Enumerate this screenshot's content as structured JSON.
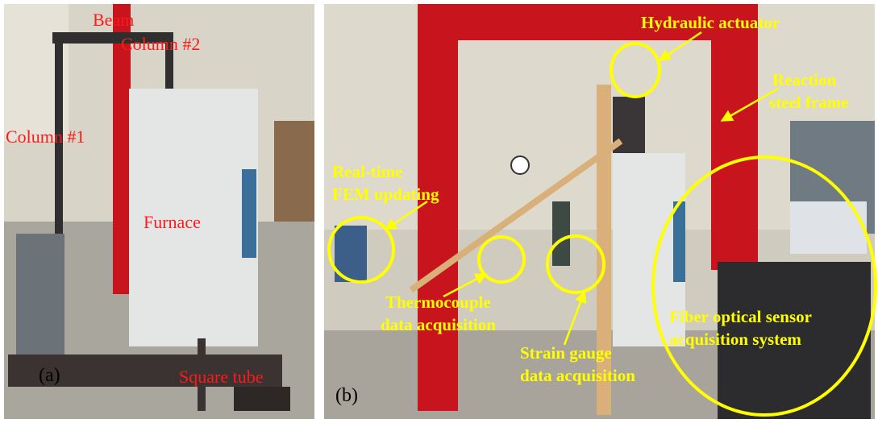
{
  "panels": [
    {
      "tag": "(a)",
      "labels": [
        "Beam",
        "Column #2",
        "Column #1",
        "Furnace",
        "Square tube"
      ]
    },
    {
      "tag": "(b)",
      "annotations": [
        {
          "lines": [
            "Hydraulic actuator"
          ]
        },
        {
          "lines": [
            "Reaction",
            "steel frame"
          ]
        },
        {
          "lines": [
            "Real-time",
            "FEM updating"
          ]
        },
        {
          "lines": [
            "Thermocouple",
            "data acquisition"
          ]
        },
        {
          "lines": [
            "Strain gauge",
            "data acquisition"
          ]
        },
        {
          "lines": [
            "Fiber optical sensor",
            "acquisition system"
          ]
        }
      ]
    }
  ]
}
